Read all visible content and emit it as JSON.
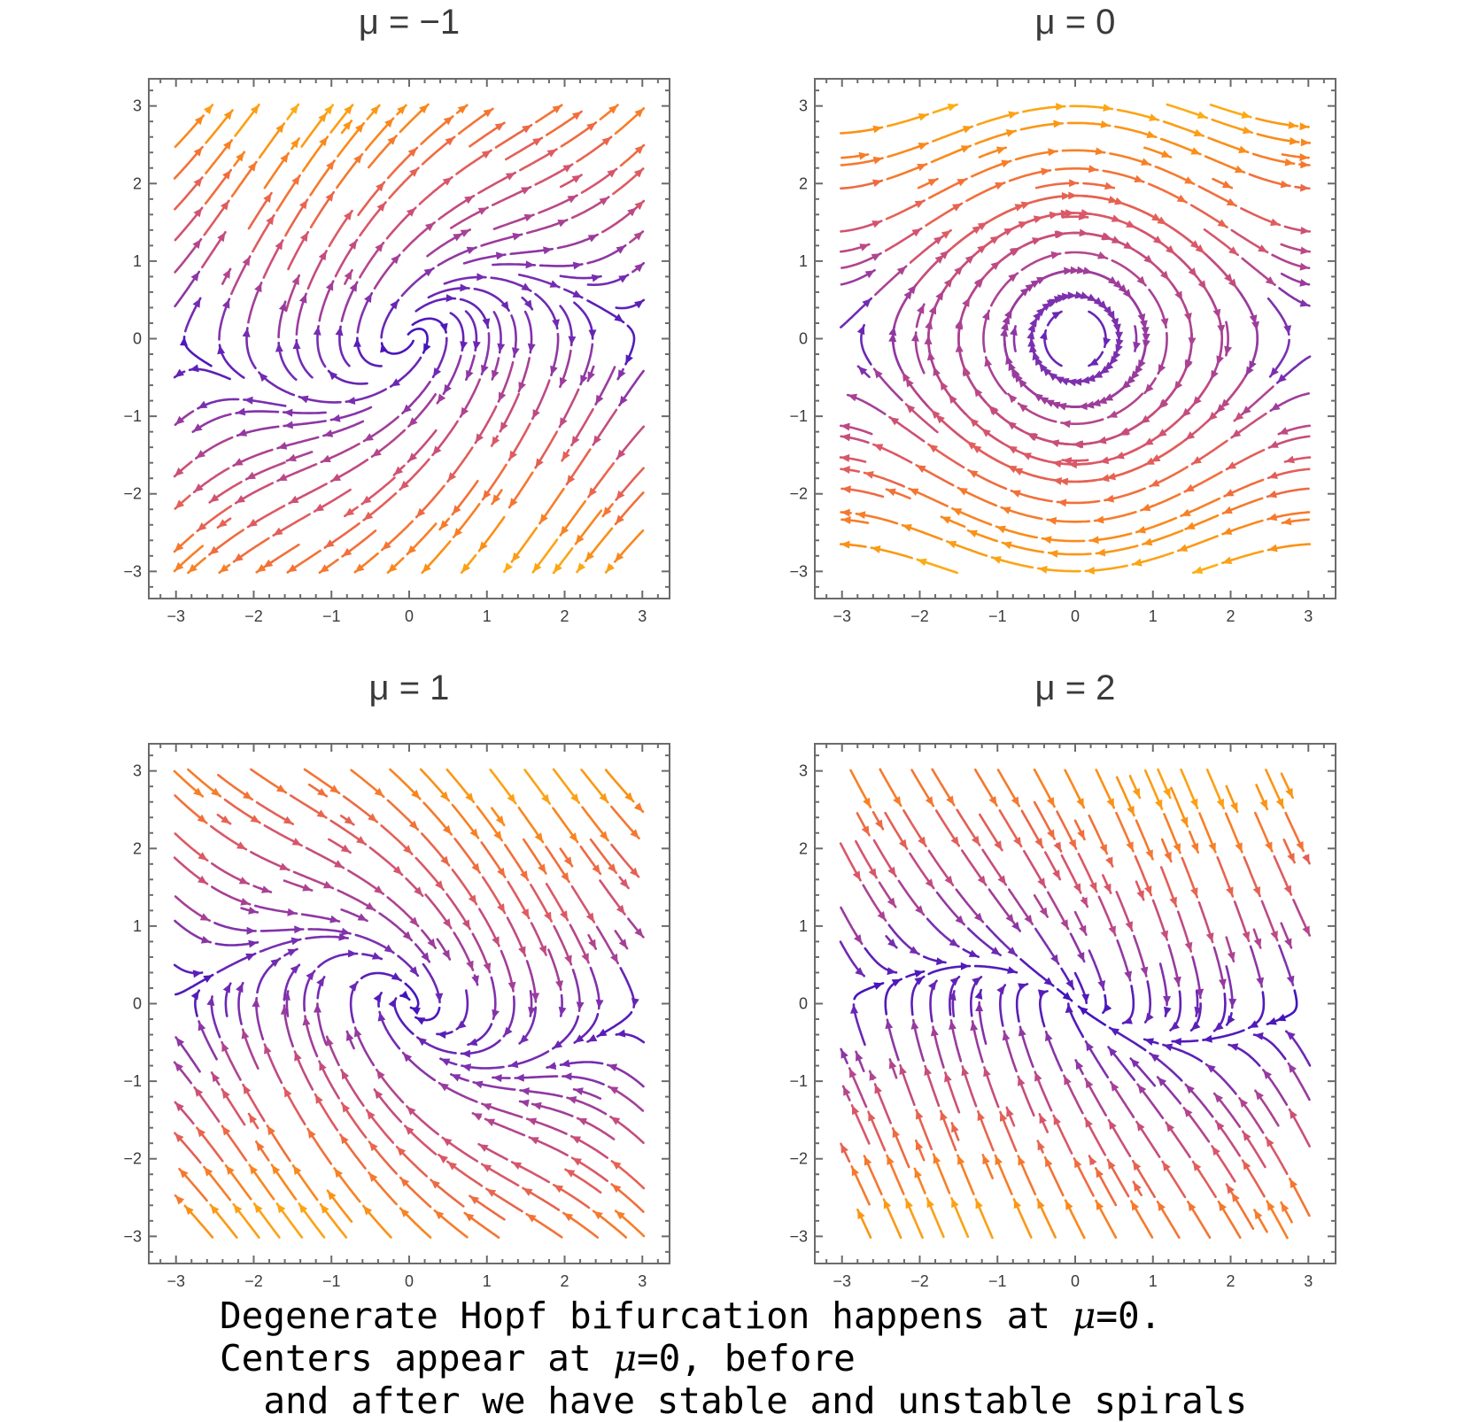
{
  "chart_data": [
    {
      "type": "streamplot",
      "title": "μ = −1",
      "mu": -1,
      "system": {
        "dx": "y",
        "dy": "-sin(x) - mu*y"
      },
      "xlim": [
        -3.35,
        3.35
      ],
      "ylim": [
        -3.35,
        3.35
      ],
      "xticks": [
        -3,
        -2,
        -1,
        0,
        1,
        2,
        3
      ],
      "yticks": [
        -3,
        -2,
        -1,
        0,
        1,
        2,
        3
      ],
      "behavior": "unstable spiral at origin"
    },
    {
      "type": "streamplot",
      "title": "μ = 0",
      "mu": 0,
      "system": {
        "dx": "y",
        "dy": "-sin(x) - mu*y"
      },
      "xlim": [
        -3.35,
        3.35
      ],
      "ylim": [
        -3.35,
        3.35
      ],
      "xticks": [
        -3,
        -2,
        -1,
        0,
        1,
        2,
        3
      ],
      "yticks": [
        -3,
        -2,
        -1,
        0,
        1,
        2,
        3
      ],
      "behavior": "center at origin (clockwise closed orbits)"
    },
    {
      "type": "streamplot",
      "title": "μ = 1",
      "mu": 1,
      "system": {
        "dx": "y",
        "dy": "-sin(x) - mu*y"
      },
      "xlim": [
        -3.35,
        3.35
      ],
      "ylim": [
        -3.35,
        3.35
      ],
      "xticks": [
        -3,
        -2,
        -1,
        0,
        1,
        2,
        3
      ],
      "yticks": [
        -3,
        -2,
        -1,
        0,
        1,
        2,
        3
      ],
      "behavior": "stable spiral at origin"
    },
    {
      "type": "streamplot",
      "title": "μ = 2",
      "mu": 2,
      "system": {
        "dx": "y",
        "dy": "-sin(x) - mu*y"
      },
      "xlim": [
        -3.35,
        3.35
      ],
      "ylim": [
        -3.35,
        3.35
      ],
      "xticks": [
        -3,
        -2,
        -1,
        0,
        1,
        2,
        3
      ],
      "yticks": [
        -3,
        -2,
        -1,
        0,
        1,
        2,
        3
      ],
      "behavior": "stable node at origin"
    }
  ],
  "panels": [
    {
      "title": "μ = −1",
      "mu": -1
    },
    {
      "title": "μ = 0",
      "mu": 0
    },
    {
      "title": "μ = 1",
      "mu": 1
    },
    {
      "title": "μ = 2",
      "mu": 2
    }
  ],
  "tick_labels": [
    "−3",
    "−2",
    "−1",
    "0",
    "1",
    "2",
    "3"
  ],
  "color_scale": [
    "#3b0fbf",
    "#7a2fb0",
    "#b0448f",
    "#d9566a",
    "#f26f3a",
    "#fb8c17",
    "#fcb014"
  ],
  "caption": {
    "line1_pre": "Degenerate Hopf bifurcation happens at ",
    "line1_mu": "μ",
    "line1_post": "=0.",
    "line2_pre": "Centers appear at ",
    "line2_mu": "μ",
    "line2_post": "=0, before",
    "line3": "  and after we have stable and unstable spirals"
  }
}
